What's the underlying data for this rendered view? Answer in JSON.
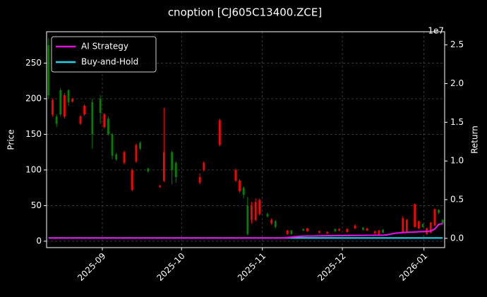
{
  "chart_data": {
    "type": "candlestick",
    "title": "cnoption [CJ605C13400.ZCE]",
    "ylabel": "Price",
    "y2label": "Return",
    "y2_offset_label": "1e7",
    "up_color": "#008000",
    "down_color": "#ff0000",
    "grid": true,
    "legend": "upper left",
    "xlim": [
      -0.5,
      99.5
    ],
    "xticks": [
      {
        "value": 13.5,
        "label": "2025-09"
      },
      {
        "value": 33.4,
        "label": "2025-10"
      },
      {
        "value": 53.7,
        "label": "2025-11"
      },
      {
        "value": 73.8,
        "label": "2025-12"
      },
      {
        "value": 94.3,
        "label": "2026-01"
      }
    ],
    "ylim": [
      -9,
      294
    ],
    "yticks": [
      0,
      50,
      100,
      150,
      200,
      250
    ],
    "y2lim": [
      -1200000,
      26700000
    ],
    "y2ticks": [
      {
        "value": 0,
        "label": "0.0"
      },
      {
        "value": 5000000,
        "label": "0.5"
      },
      {
        "value": 10000000,
        "label": "1.0"
      },
      {
        "value": 15000000,
        "label": "1.5"
      },
      {
        "value": 20000000,
        "label": "2.0"
      },
      {
        "value": 25000000,
        "label": "2.5"
      }
    ],
    "candles": [
      [
        205,
        285,
        200,
        275
      ],
      [
        198,
        200,
        175,
        178
      ],
      [
        165,
        178,
        160,
        175
      ],
      [
        178,
        215,
        175,
        212
      ],
      [
        205,
        208,
        172,
        175
      ],
      [
        195,
        213,
        190,
        212
      ],
      [
        200,
        201,
        195,
        196
      ],
      null,
      [
        175,
        177,
        163,
        165
      ],
      [
        190,
        192,
        176,
        178
      ],
      null,
      [
        150,
        200,
        130,
        195
      ],
      null,
      [
        180,
        205,
        165,
        200
      ],
      [
        178,
        180,
        158,
        160
      ],
      [
        150,
        175,
        148,
        172
      ],
      [
        120,
        152,
        115,
        150
      ],
      [
        115,
        124,
        113,
        122
      ],
      null,
      [
        125,
        127,
        108,
        110
      ],
      null,
      [
        100,
        102,
        70,
        72
      ],
      [
        135,
        137,
        110,
        112
      ],
      [
        130,
        140,
        128,
        138
      ],
      null,
      [
        98,
        103,
        96,
        102
      ],
      null,
      null,
      [
        78,
        79,
        75,
        76
      ],
      [
        125,
        187,
        83,
        85
      ],
      null,
      [
        100,
        127,
        80,
        125
      ],
      [
        90,
        112,
        82,
        110
      ],
      null,
      null,
      null,
      null,
      null,
      [
        90,
        95,
        80,
        82
      ],
      [
        110,
        112,
        98,
        100
      ],
      null,
      null,
      null,
      [
        170,
        172,
        133,
        135
      ],
      null,
      null,
      null,
      [
        100,
        102,
        83,
        85
      ],
      [
        85,
        87,
        68,
        70
      ],
      [
        65,
        77,
        60,
        75
      ],
      [
        10,
        62,
        8,
        50
      ],
      [
        50,
        55,
        25,
        30
      ],
      [
        55,
        60,
        28,
        30
      ],
      [
        58,
        60,
        36,
        38
      ],
      null,
      [
        35,
        40,
        33,
        38
      ],
      [
        30,
        32,
        23,
        25
      ],
      [
        20,
        30,
        18,
        28
      ],
      null,
      null,
      [
        15,
        16,
        9,
        10
      ],
      [
        10,
        16,
        9,
        15
      ],
      null,
      null,
      [
        15,
        18,
        14,
        17
      ],
      [
        18,
        19,
        13,
        14
      ],
      null,
      null,
      [
        14,
        15,
        11,
        12
      ],
      null,
      [
        13,
        14,
        10,
        11
      ],
      null,
      [
        14,
        18,
        13,
        17
      ],
      [
        17,
        18,
        14,
        15
      ],
      null,
      [
        17,
        18,
        12,
        13
      ],
      null,
      [
        22,
        24,
        17,
        18
      ],
      null,
      [
        16,
        20,
        15,
        19
      ],
      [
        18,
        19,
        14,
        15
      ],
      null,
      [
        14,
        15,
        10,
        11
      ],
      [
        15,
        16,
        9,
        10
      ],
      [
        12,
        17,
        11,
        16
      ],
      null,
      null,
      null,
      null,
      [
        32,
        35,
        11,
        12
      ],
      [
        30,
        31,
        13,
        14
      ],
      null,
      [
        52,
        53,
        19,
        20
      ],
      [
        28,
        29,
        17,
        18
      ],
      [
        20,
        25,
        19,
        24
      ],
      [
        18,
        19,
        9,
        10
      ],
      [
        26,
        27,
        11,
        12
      ],
      [
        45,
        46,
        21,
        22
      ],
      [
        40,
        45,
        38,
        44
      ],
      [
        25,
        31,
        24,
        30
      ]
    ],
    "series": [
      {
        "name": "AI Strategy",
        "color": "#e010e0",
        "axis": "y2",
        "values": [
          50000,
          50000,
          50000,
          50000,
          50000,
          50000,
          50000,
          50000,
          50000,
          50000,
          50000,
          50000,
          50000,
          50000,
          50000,
          50000,
          50000,
          50000,
          50000,
          50000,
          50000,
          50000,
          50000,
          50000,
          50000,
          50000,
          50000,
          50000,
          50000,
          50000,
          50000,
          50000,
          50000,
          50000,
          50000,
          50000,
          50000,
          50000,
          50000,
          50000,
          50000,
          50000,
          50000,
          50000,
          50000,
          50000,
          50000,
          50000,
          50000,
          50000,
          50000,
          50000,
          50000,
          50000,
          50000,
          50000,
          50000,
          50000,
          50000,
          50000,
          100000,
          150000,
          200000,
          250000,
          280000,
          300000,
          300000,
          310000,
          320000,
          330000,
          340000,
          340000,
          350000,
          350000,
          360000,
          360000,
          370000,
          370000,
          380000,
          380000,
          390000,
          390000,
          400000,
          400000,
          400000,
          450000,
          550000,
          650000,
          700000,
          750000,
          780000,
          800000,
          820000,
          850000,
          870000,
          900000,
          950000,
          1200000,
          1800000,
          1900000
        ]
      },
      {
        "name": "Buy-and-Hold",
        "color": "#22d3e6",
        "axis": "y2",
        "values": [
          50000,
          50000,
          50000,
          50000,
          50000,
          50000,
          50000,
          50000,
          50000,
          50000,
          50000,
          50000,
          50000,
          50000,
          50000,
          50000,
          50000,
          50000,
          50000,
          50000,
          50000,
          50000,
          50000,
          50000,
          50000,
          50000,
          50000,
          50000,
          50000,
          50000,
          50000,
          50000,
          50000,
          50000,
          50000,
          50000,
          50000,
          50000,
          50000,
          50000,
          50000,
          50000,
          50000,
          50000,
          50000,
          50000,
          50000,
          50000,
          50000,
          50000,
          50000,
          50000,
          50000,
          50000,
          50000,
          50000,
          50000,
          50000,
          50000,
          50000,
          50000,
          50000,
          50000,
          50000,
          50000,
          50000,
          50000,
          50000,
          50000,
          50000,
          50000,
          50000,
          50000,
          50000,
          50000,
          50000,
          50000,
          50000,
          50000,
          50000,
          50000,
          50000,
          50000,
          50000,
          50000,
          50000,
          50000,
          50000,
          50000,
          50000,
          50000,
          50000,
          50000,
          50000,
          50000,
          50000,
          50000,
          50000,
          50000,
          50000
        ]
      }
    ]
  }
}
